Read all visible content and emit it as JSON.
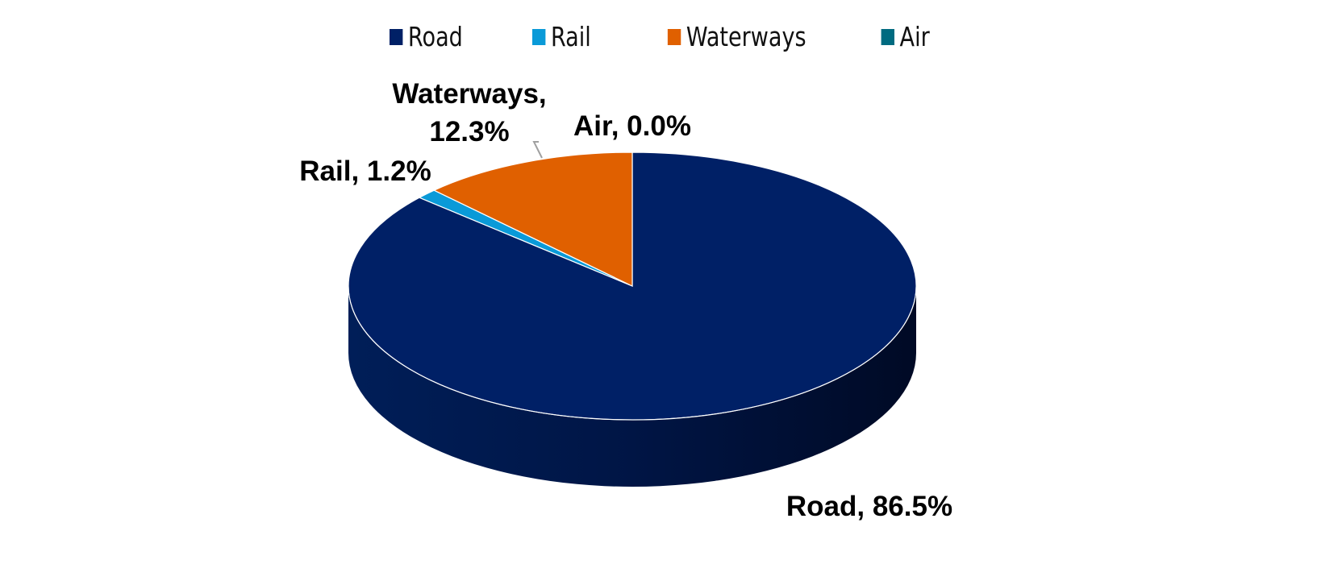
{
  "chart_data": {
    "type": "pie",
    "style": "3d",
    "categories": [
      "Road",
      "Rail",
      "Waterways",
      "Air"
    ],
    "values": [
      86.5,
      1.2,
      12.3,
      0.0
    ],
    "colors": [
      "#002066",
      "#0a9ad8",
      "#e06000",
      "#006b80"
    ],
    "data_labels": [
      "Road, 86.5%",
      "Rail, 1.2%",
      "Waterways, 12.3%",
      "Air, 0.0%"
    ],
    "legend": {
      "position": "top",
      "entries": [
        "Road",
        "Rail",
        "Waterways",
        "Air"
      ]
    }
  }
}
